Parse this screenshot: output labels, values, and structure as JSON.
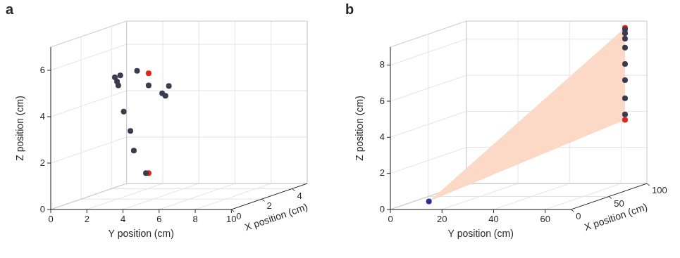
{
  "chart_data": [
    {
      "type": "scatter3d",
      "panel_label": "a",
      "xlabel": "X position (cm)",
      "ylabel": "Y position (cm)",
      "zlabel": "Z position (cm)",
      "xlim": [
        0,
        5
      ],
      "ylim": [
        0,
        10
      ],
      "zlim": [
        0,
        7
      ],
      "xticks": [
        0,
        2,
        4
      ],
      "yticks": [
        0,
        2,
        4,
        6,
        8,
        10
      ],
      "zticks": [
        0,
        2,
        4,
        6
      ],
      "grid": true,
      "series": [
        {
          "color": "#3b3b4f",
          "x": [
            2,
            2,
            2,
            2,
            2,
            2,
            2,
            2,
            2,
            2,
            2,
            2,
            2
          ],
          "y": [
            1.87,
            2.17,
            1.99,
            2.06,
            3.1,
            3.74,
            4.49,
            4.86,
            4.67,
            2.36,
            2.73,
            2.92,
            3.59
          ],
          "z": [
            5.25,
            5.33,
            5.07,
            4.9,
            5.53,
            4.9,
            4.56,
            4.88,
            4.45,
            3.77,
            2.94,
            2.09,
            1.12
          ]
        },
        {
          "color": "#e0251b",
          "x": [
            2,
            2
          ],
          "y": [
            3.74,
            3.74
          ],
          "z": [
            5.42,
            1.12
          ]
        }
      ]
    },
    {
      "type": "scatter3d",
      "panel_label": "b",
      "xlabel": "X position (cm)",
      "ylabel": "Y position (cm)",
      "zlabel": "Z position (cm)",
      "xlim": [
        0,
        100
      ],
      "ylim": [
        0,
        70
      ],
      "zlim": [
        0,
        9
      ],
      "xticks": [
        0,
        50,
        100
      ],
      "yticks": [
        0,
        20,
        40,
        60
      ],
      "zticks": [
        0,
        2,
        4,
        6,
        8
      ],
      "grid": true,
      "series": [
        {
          "type": "area",
          "color": "#fcd8c6",
          "x": [
            10,
            95,
            95
          ],
          "y": [
            12,
            63,
            63
          ],
          "z": [
            0.3,
            8.7,
            3.6
          ]
        },
        {
          "color": "#3b3b4f",
          "x": [
            95,
            95,
            95,
            95,
            95,
            95,
            95,
            95
          ],
          "y": [
            63,
            63,
            63,
            63,
            63,
            63,
            63,
            63
          ],
          "z": [
            8.6,
            8.4,
            8.1,
            7.6,
            6.7,
            5.8,
            4.8,
            3.9
          ]
        },
        {
          "color": "#e0251b",
          "x": [
            95,
            95
          ],
          "y": [
            63,
            63
          ],
          "z": [
            8.7,
            3.6
          ]
        },
        {
          "color": "#2b2f8f",
          "x": [
            10
          ],
          "y": [
            12
          ],
          "z": [
            0.3
          ]
        }
      ]
    }
  ]
}
